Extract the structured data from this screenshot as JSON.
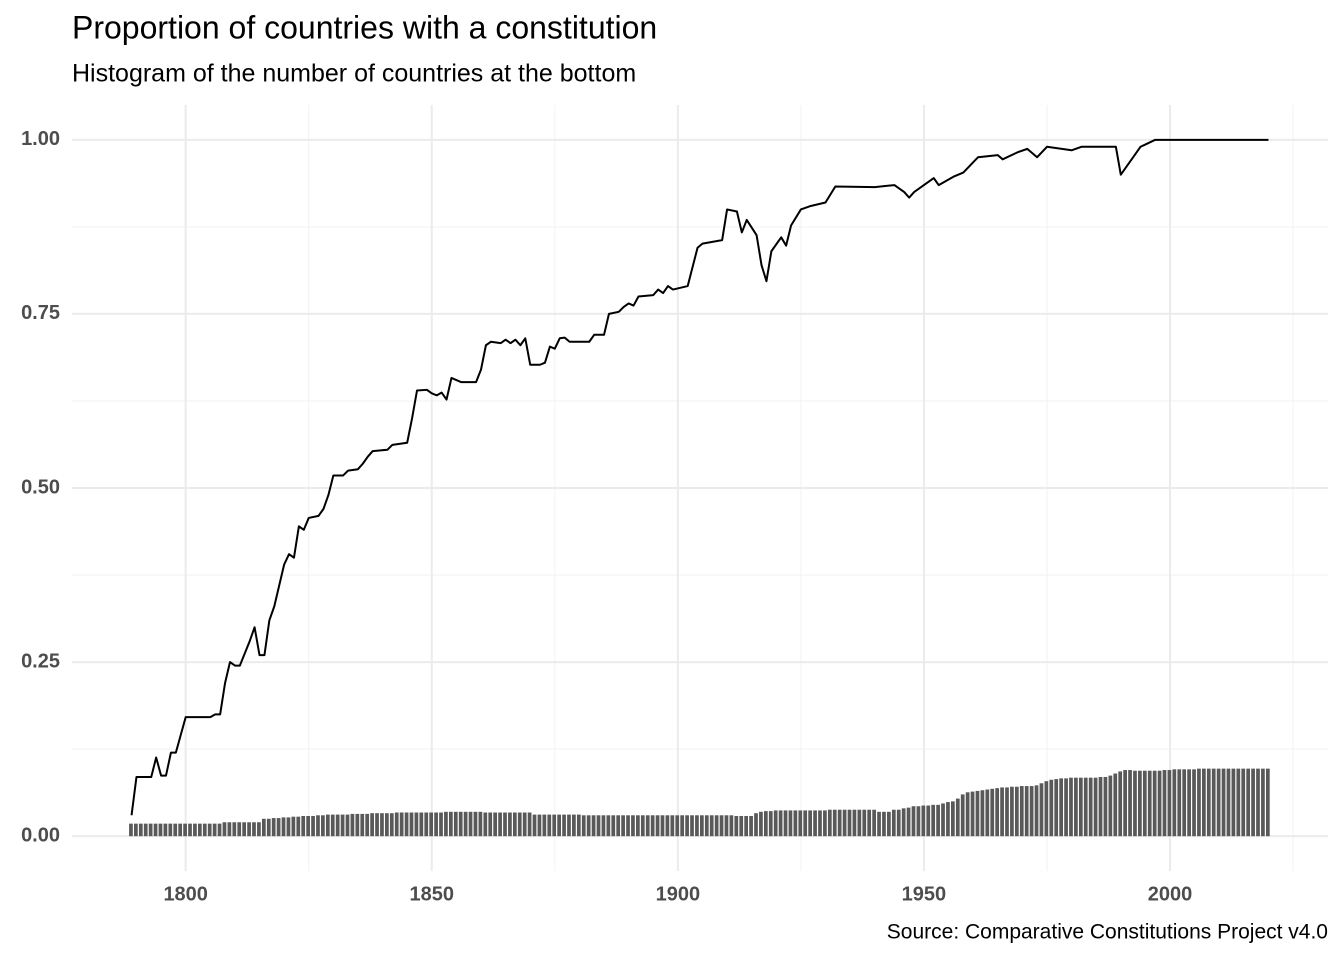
{
  "chart_data": {
    "type": "combo",
    "title": "Proportion of countries with a constitution",
    "subtitle": "Histogram of the number of countries at the bottom",
    "caption": "Source: Comparative Constitutions Project v4.0",
    "xlim": [
      1776.9,
      2032.1
    ],
    "ylim": [
      -0.05,
      1.05
    ],
    "xticks": [
      1800,
      1850,
      1900,
      1950,
      2000
    ],
    "yticks": [
      {
        "value": 0,
        "label": "0.00"
      },
      {
        "value": 0.25,
        "label": "0.25"
      },
      {
        "value": 0.5,
        "label": "0.50"
      },
      {
        "value": 0.75,
        "label": "0.75"
      },
      {
        "value": 1,
        "label": "1.00"
      }
    ],
    "grid": true,
    "series": [
      {
        "type": "bar",
        "color": "#595959",
        "x": [
          1789,
          1790,
          1791,
          1792,
          1793,
          1794,
          1795,
          1796,
          1797,
          1798,
          1799,
          1800,
          1801,
          1802,
          1803,
          1804,
          1805,
          1806,
          1807,
          1808,
          1809,
          1810,
          1811,
          1812,
          1813,
          1814,
          1815,
          1816,
          1817,
          1818,
          1819,
          1820,
          1821,
          1822,
          1823,
          1824,
          1825,
          1826,
          1827,
          1828,
          1829,
          1830,
          1831,
          1832,
          1833,
          1834,
          1835,
          1836,
          1837,
          1838,
          1839,
          1840,
          1841,
          1842,
          1843,
          1844,
          1845,
          1846,
          1847,
          1848,
          1849,
          1850,
          1851,
          1852,
          1853,
          1854,
          1855,
          1856,
          1857,
          1858,
          1859,
          1860,
          1861,
          1862,
          1863,
          1864,
          1865,
          1866,
          1867,
          1868,
          1869,
          1870,
          1871,
          1872,
          1873,
          1874,
          1875,
          1876,
          1877,
          1878,
          1879,
          1880,
          1881,
          1882,
          1883,
          1884,
          1885,
          1886,
          1887,
          1888,
          1889,
          1890,
          1891,
          1892,
          1893,
          1894,
          1895,
          1896,
          1897,
          1898,
          1899,
          1900,
          1901,
          1902,
          1903,
          1904,
          1905,
          1906,
          1907,
          1908,
          1909,
          1910,
          1911,
          1912,
          1913,
          1914,
          1915,
          1916,
          1917,
          1918,
          1919,
          1920,
          1921,
          1922,
          1923,
          1924,
          1925,
          1926,
          1927,
          1928,
          1929,
          1930,
          1931,
          1932,
          1933,
          1934,
          1935,
          1936,
          1937,
          1938,
          1939,
          1940,
          1941,
          1942,
          1943,
          1944,
          1945,
          1946,
          1947,
          1948,
          1949,
          1950,
          1951,
          1952,
          1953,
          1954,
          1955,
          1956,
          1957,
          1958,
          1959,
          1960,
          1961,
          1962,
          1963,
          1964,
          1965,
          1966,
          1967,
          1968,
          1969,
          1970,
          1971,
          1972,
          1973,
          1974,
          1975,
          1976,
          1977,
          1978,
          1979,
          1980,
          1981,
          1982,
          1983,
          1984,
          1985,
          1986,
          1987,
          1988,
          1989,
          1990,
          1991,
          1992,
          1993,
          1994,
          1995,
          1996,
          1997,
          1998,
          1999,
          2000,
          2001,
          2002,
          2003,
          2004,
          2005,
          2006,
          2007,
          2008,
          2009,
          2010,
          2011,
          2012,
          2013,
          2014,
          2015,
          2016,
          2017,
          2018,
          2019,
          2020
        ],
        "values": [
          0.018,
          0.018,
          0.018,
          0.018,
          0.018,
          0.018,
          0.018,
          0.018,
          0.018,
          0.018,
          0.018,
          0.018,
          0.018,
          0.018,
          0.018,
          0.018,
          0.018,
          0.018,
          0.018,
          0.02,
          0.02,
          0.02,
          0.02,
          0.02,
          0.02,
          0.02,
          0.02,
          0.025,
          0.025,
          0.026,
          0.026,
          0.027,
          0.027,
          0.028,
          0.028,
          0.029,
          0.029,
          0.029,
          0.03,
          0.03,
          0.031,
          0.031,
          0.031,
          0.031,
          0.031,
          0.032,
          0.032,
          0.032,
          0.032,
          0.033,
          0.033,
          0.033,
          0.033,
          0.033,
          0.034,
          0.034,
          0.034,
          0.034,
          0.034,
          0.034,
          0.034,
          0.034,
          0.034,
          0.034,
          0.035,
          0.035,
          0.035,
          0.035,
          0.035,
          0.035,
          0.035,
          0.035,
          0.034,
          0.034,
          0.034,
          0.034,
          0.034,
          0.034,
          0.034,
          0.034,
          0.034,
          0.034,
          0.031,
          0.031,
          0.031,
          0.031,
          0.031,
          0.031,
          0.031,
          0.031,
          0.031,
          0.031,
          0.03,
          0.03,
          0.03,
          0.03,
          0.03,
          0.03,
          0.03,
          0.03,
          0.03,
          0.03,
          0.03,
          0.03,
          0.03,
          0.03,
          0.03,
          0.03,
          0.03,
          0.03,
          0.03,
          0.03,
          0.03,
          0.03,
          0.03,
          0.03,
          0.03,
          0.03,
          0.03,
          0.03,
          0.03,
          0.03,
          0.03,
          0.029,
          0.029,
          0.029,
          0.029,
          0.033,
          0.035,
          0.036,
          0.036,
          0.037,
          0.037,
          0.037,
          0.037,
          0.037,
          0.037,
          0.037,
          0.037,
          0.037,
          0.037,
          0.037,
          0.038,
          0.038,
          0.038,
          0.038,
          0.038,
          0.038,
          0.038,
          0.038,
          0.038,
          0.038,
          0.035,
          0.035,
          0.035,
          0.038,
          0.038,
          0.04,
          0.041,
          0.043,
          0.043,
          0.044,
          0.044,
          0.045,
          0.045,
          0.047,
          0.049,
          0.05,
          0.054,
          0.06,
          0.063,
          0.064,
          0.065,
          0.066,
          0.067,
          0.068,
          0.069,
          0.07,
          0.07,
          0.071,
          0.071,
          0.072,
          0.072,
          0.072,
          0.073,
          0.076,
          0.079,
          0.081,
          0.082,
          0.083,
          0.083,
          0.084,
          0.084,
          0.084,
          0.084,
          0.084,
          0.084,
          0.085,
          0.085,
          0.087,
          0.09,
          0.093,
          0.095,
          0.095,
          0.094,
          0.094,
          0.094,
          0.094,
          0.094,
          0.094,
          0.095,
          0.095,
          0.096,
          0.096,
          0.096,
          0.096,
          0.096,
          0.097,
          0.097,
          0.097,
          0.097,
          0.097,
          0.097,
          0.097,
          0.097,
          0.097,
          0.097,
          0.097,
          0.097,
          0.097,
          0.097,
          0.097
        ]
      },
      {
        "type": "line",
        "color": "#000000",
        "x": [
          1789,
          1790,
          1793,
          1794,
          1795,
          1796,
          1797,
          1798,
          1800,
          1805,
          1806,
          1807,
          1808,
          1809,
          1810,
          1811,
          1813,
          1814,
          1815,
          1816,
          1817,
          1818,
          1820,
          1821,
          1822,
          1823,
          1824,
          1825,
          1827,
          1828,
          1829,
          1830,
          1832,
          1833,
          1835,
          1836,
          1837,
          1838,
          1841,
          1842,
          1845,
          1846,
          1847,
          1849,
          1850,
          1851,
          1852,
          1853,
          1854,
          1855,
          1856,
          1859,
          1860,
          1861,
          1862,
          1864,
          1865,
          1866,
          1867,
          1868,
          1869,
          1870,
          1872,
          1873,
          1874,
          1875,
          1876,
          1877,
          1878,
          1882,
          1883,
          1885,
          1886,
          1888,
          1889,
          1890,
          1891,
          1892,
          1895,
          1896,
          1897,
          1898,
          1899,
          1902,
          1904,
          1905,
          1909,
          1910,
          1912,
          1913,
          1914,
          1916,
          1917,
          1918,
          1919,
          1921,
          1922,
          1923,
          1925,
          1927,
          1930,
          1932,
          1940,
          1944,
          1946,
          1947,
          1948,
          1950,
          1952,
          1953,
          1956,
          1958,
          1961,
          1965,
          1966,
          1969,
          1971,
          1973,
          1975,
          1980,
          1982,
          1989,
          1990,
          1994,
          1997,
          2020
        ],
        "values": [
          0.03,
          0.085,
          0.085,
          0.113,
          0.087,
          0.087,
          0.12,
          0.12,
          0.171,
          0.171,
          0.175,
          0.175,
          0.22,
          0.25,
          0.245,
          0.245,
          0.28,
          0.3,
          0.26,
          0.26,
          0.31,
          0.33,
          0.39,
          0.405,
          0.4,
          0.445,
          0.44,
          0.457,
          0.46,
          0.47,
          0.49,
          0.518,
          0.518,
          0.525,
          0.527,
          0.535,
          0.545,
          0.553,
          0.555,
          0.562,
          0.565,
          0.6,
          0.64,
          0.641,
          0.636,
          0.633,
          0.637,
          0.627,
          0.658,
          0.655,
          0.652,
          0.652,
          0.67,
          0.705,
          0.71,
          0.708,
          0.713,
          0.708,
          0.713,
          0.705,
          0.715,
          0.677,
          0.677,
          0.68,
          0.703,
          0.7,
          0.715,
          0.716,
          0.71,
          0.71,
          0.72,
          0.72,
          0.75,
          0.753,
          0.76,
          0.765,
          0.762,
          0.775,
          0.777,
          0.785,
          0.78,
          0.79,
          0.785,
          0.79,
          0.845,
          0.851,
          0.856,
          0.9,
          0.897,
          0.867,
          0.885,
          0.863,
          0.82,
          0.797,
          0.84,
          0.86,
          0.848,
          0.877,
          0.9,
          0.905,
          0.91,
          0.933,
          0.932,
          0.935,
          0.925,
          0.917,
          0.925,
          0.935,
          0.945,
          0.935,
          0.947,
          0.953,
          0.975,
          0.978,
          0.972,
          0.982,
          0.987,
          0.975,
          0.99,
          0.985,
          0.99,
          0.99,
          0.95,
          0.99,
          1.0,
          1.0
        ]
      }
    ]
  }
}
